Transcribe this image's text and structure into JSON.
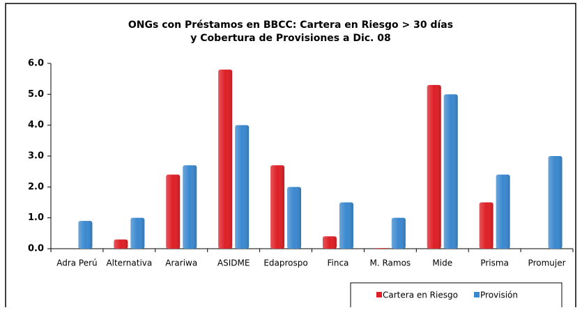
{
  "chart_data": {
    "type": "bar",
    "title": [
      "ONGs con Préstamos en BBCC:  Cartera en Riesgo > 30 días",
      "y Cobertura de Provisiones a Dic. 08"
    ],
    "categories": [
      "Adra Perú",
      "Alternativa",
      "Arariwa",
      "ASIDME",
      "Edaprospo",
      "Finca",
      "M. Ramos",
      "Mide",
      "Prisma",
      "Promujer"
    ],
    "series": [
      {
        "name": "Cartera en Riesgo",
        "color": "#de1f26",
        "values": [
          0,
          0.3,
          2.4,
          5.8,
          2.7,
          0.4,
          0.02,
          5.3,
          1.5,
          0
        ]
      },
      {
        "name": "Provisión",
        "color": "#3a88cf",
        "values": [
          0.9,
          1.0,
          2.7,
          4.0,
          2.0,
          1.5,
          1.0,
          5.0,
          2.4,
          3.0
        ]
      }
    ],
    "ylim": [
      0,
      6
    ],
    "yticks": [
      {
        "value": 0,
        "label": "0.0"
      },
      {
        "value": 1,
        "label": "1.0"
      },
      {
        "value": 2,
        "label": "2.0"
      },
      {
        "value": 3,
        "label": "3.0"
      },
      {
        "value": 4,
        "label": "4.0"
      },
      {
        "value": 5,
        "label": "5.0"
      },
      {
        "value": 6,
        "label": "6.0"
      }
    ],
    "grid": false,
    "legend": "bottom-right"
  }
}
